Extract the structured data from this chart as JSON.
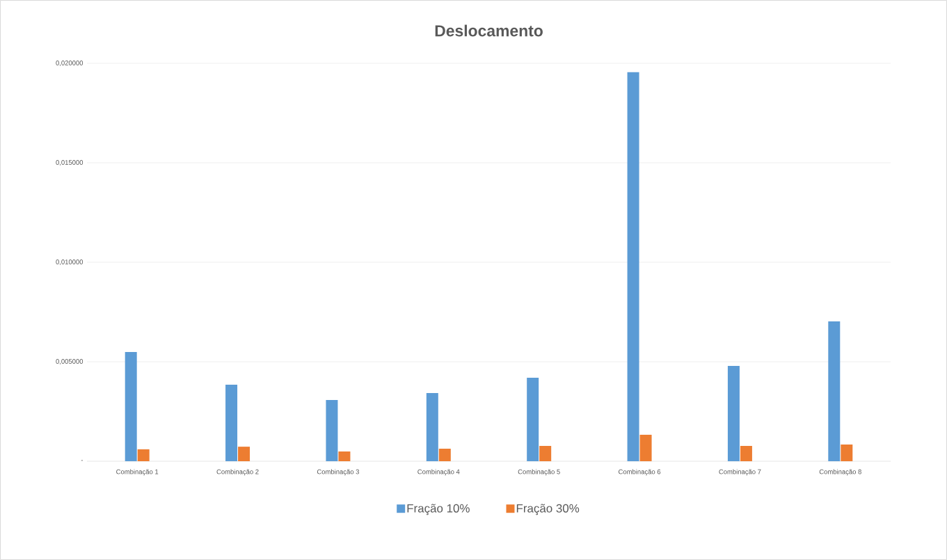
{
  "chart_data": {
    "type": "bar",
    "title": "Deslocamento",
    "categories": [
      "Combinação 1",
      "Combinação 2",
      "Combinação 3",
      "Combinação 4",
      "Combinação 5",
      "Combinação 6",
      "Combinação 7",
      "Combinação 8"
    ],
    "series": [
      {
        "name": "Fração 10%",
        "color": "#5b9bd5",
        "values": [
          0.00549,
          0.00385,
          0.00308,
          0.00343,
          0.0042,
          0.01955,
          0.00479,
          0.00703
        ]
      },
      {
        "name": "Fração 30%",
        "color": "#ed7d31",
        "values": [
          0.0006,
          0.00073,
          0.00049,
          0.00063,
          0.00077,
          0.00133,
          0.00077,
          0.00084
        ]
      }
    ],
    "ylim": [
      0,
      0.02
    ],
    "yticks": [
      {
        "value": 0,
        "label": "-"
      },
      {
        "value": 0.005,
        "label": "0,005000"
      },
      {
        "value": 0.01,
        "label": "0,010000"
      },
      {
        "value": 0.015,
        "label": "0,015000"
      },
      {
        "value": 0.02,
        "label": "0,020000"
      }
    ],
    "grid": "y",
    "legend": "bottom"
  }
}
